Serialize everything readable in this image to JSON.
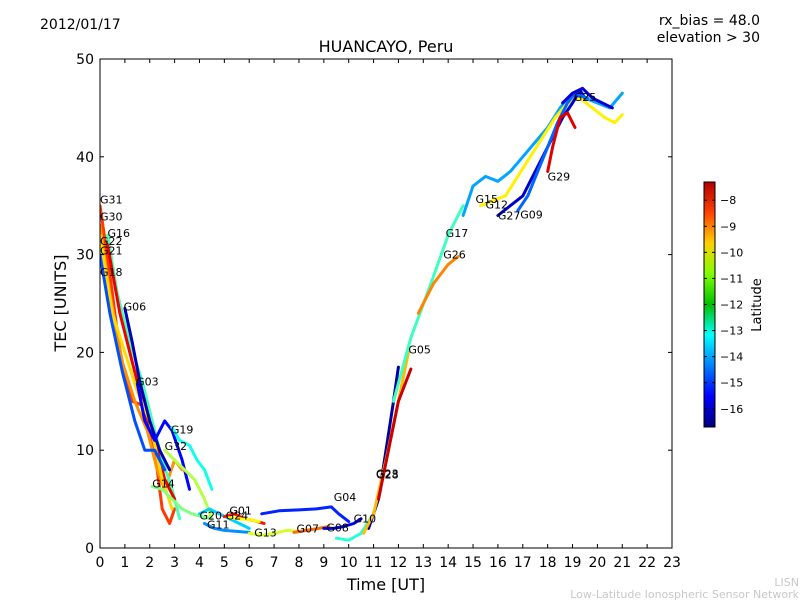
{
  "chart_data": {
    "type": "line",
    "date": "2012/01/17",
    "title": "HUANCAYO, Peru",
    "params": [
      "rx_bias = 48.0",
      "elevation > 30"
    ],
    "xlabel": "Time [UT]",
    "ylabel": "TEC [UNITS]",
    "xlim": [
      0,
      23
    ],
    "ylim": [
      0,
      50
    ],
    "xticks": [
      "0",
      "1",
      "2",
      "3",
      "4",
      "5",
      "6",
      "7",
      "8",
      "9",
      "10",
      "11",
      "12",
      "13",
      "14",
      "15",
      "16",
      "17",
      "18",
      "19",
      "20",
      "21",
      "22",
      "23"
    ],
    "yticks": [
      "0",
      "10",
      "20",
      "30",
      "40",
      "50"
    ],
    "colorbar": {
      "label": "Latitude",
      "range": [
        -16.7,
        -7.3
      ],
      "ticks": [
        "−8",
        "−9",
        "−10",
        "−11",
        "−12",
        "−13",
        "−14",
        "−15",
        "−16"
      ],
      "tick_values": [
        -8,
        -9,
        -10,
        -11,
        -12,
        -13,
        -14,
        -15,
        -16
      ]
    },
    "series": [
      {
        "name": "G31",
        "lat": -9.0,
        "points": [
          [
            0,
            35
          ],
          [
            0.4,
            28
          ],
          [
            0.8,
            20
          ],
          [
            1.3,
            15
          ],
          [
            1.8,
            14.5
          ],
          [
            2.2,
            10
          ],
          [
            2.5,
            4
          ],
          [
            2.8,
            2.5
          ],
          [
            3.0,
            4
          ]
        ]
      },
      {
        "name": "G30",
        "lat": -9.8,
        "points": [
          [
            0,
            33
          ],
          [
            0.4,
            26
          ],
          [
            0.9,
            19
          ],
          [
            1.4,
            15
          ],
          [
            1.9,
            12
          ],
          [
            2.3,
            8
          ],
          [
            2.6,
            6
          ],
          [
            3.0,
            9
          ],
          [
            3.3,
            8
          ]
        ]
      },
      {
        "name": "G16",
        "lat": -12.5,
        "points": [
          [
            0.3,
            32
          ],
          [
            0.7,
            26
          ],
          [
            1.2,
            21
          ],
          [
            1.7,
            17
          ],
          [
            2.1,
            13
          ],
          [
            2.5,
            9
          ],
          [
            2.9,
            6
          ],
          [
            3.2,
            3
          ]
        ]
      },
      {
        "name": "G22",
        "lat": -8.3,
        "points": [
          [
            0.3,
            31
          ],
          [
            0.8,
            24
          ],
          [
            1.3,
            19
          ],
          [
            1.8,
            14
          ],
          [
            2.2,
            11
          ],
          [
            2.6,
            7
          ],
          [
            3.0,
            5
          ]
        ]
      },
      {
        "name": "G21",
        "lat": -10.5,
        "points": [
          [
            0,
            32
          ],
          [
            0.5,
            24
          ],
          [
            1.0,
            20
          ],
          [
            1.5,
            16
          ],
          [
            2.0,
            13
          ],
          [
            2.5,
            7
          ],
          [
            2.9,
            4
          ]
        ]
      },
      {
        "name": "G18",
        "lat": -14.8,
        "points": [
          [
            0,
            30
          ],
          [
            0.4,
            24
          ],
          [
            0.9,
            18
          ],
          [
            1.4,
            13
          ],
          [
            1.8,
            10
          ],
          [
            2.2,
            10
          ],
          [
            2.6,
            8
          ]
        ]
      },
      {
        "name": "G06",
        "lat": -16.2,
        "points": [
          [
            1.0,
            24.5
          ],
          [
            1.3,
            21
          ],
          [
            1.6,
            17
          ],
          [
            2.0,
            13
          ],
          [
            2.4,
            10
          ],
          [
            2.8,
            8
          ]
        ]
      },
      {
        "name": "G03",
        "lat": -15.5,
        "points": [
          [
            1.5,
            16.8
          ],
          [
            1.8,
            13
          ],
          [
            2.2,
            11
          ],
          [
            2.6,
            13
          ],
          [
            2.9,
            12
          ],
          [
            3.3,
            9
          ],
          [
            3.6,
            6
          ]
        ]
      },
      {
        "name": "G19",
        "lat": -13.0,
        "points": [
          [
            2.9,
            12.3
          ],
          [
            3.2,
            11
          ],
          [
            3.6,
            10.5
          ],
          [
            3.9,
            9
          ],
          [
            4.2,
            8
          ],
          [
            4.5,
            6
          ]
        ]
      },
      {
        "name": "G32",
        "lat": -11.5,
        "points": [
          [
            2.6,
            10
          ],
          [
            3.0,
            9
          ],
          [
            3.4,
            8
          ],
          [
            3.8,
            7
          ],
          [
            4.2,
            5
          ],
          [
            4.5,
            3
          ]
        ]
      },
      {
        "name": "G14",
        "lat": -12.0,
        "points": [
          [
            2.1,
            6.3
          ],
          [
            2.5,
            6
          ],
          [
            2.9,
            5
          ],
          [
            3.3,
            4
          ],
          [
            3.7,
            3.5
          ],
          [
            4.1,
            3.2
          ],
          [
            4.5,
            3
          ]
        ]
      },
      {
        "name": "G20",
        "lat": -13.6,
        "points": [
          [
            4.0,
            3.5
          ],
          [
            4.4,
            4
          ],
          [
            4.8,
            3.5
          ],
          [
            5.2,
            3
          ],
          [
            5.6,
            2.5
          ],
          [
            6.0,
            2
          ]
        ]
      },
      {
        "name": "G11",
        "lat": -14.2,
        "points": [
          [
            4.2,
            2.5
          ],
          [
            4.6,
            2
          ],
          [
            5.0,
            1.8
          ],
          [
            5.5,
            1.7
          ],
          [
            6.0,
            1.6
          ]
        ]
      },
      {
        "name": "G01",
        "lat": -8.7,
        "points": [
          [
            5.0,
            3.2
          ],
          [
            5.4,
            3.5
          ],
          [
            5.8,
            3
          ],
          [
            6.2,
            2.8
          ],
          [
            6.6,
            2.5
          ]
        ]
      },
      {
        "name": "G24",
        "lat": -10.8,
        "points": [
          [
            5.2,
            3.1
          ],
          [
            5.6,
            3
          ],
          [
            6.0,
            2.9
          ],
          [
            6.4,
            2.7
          ]
        ]
      },
      {
        "name": "G13",
        "lat": -11.2,
        "points": [
          [
            6.0,
            1.5
          ],
          [
            6.5,
            1.3
          ],
          [
            7.0,
            1.5
          ],
          [
            7.5,
            1.8
          ],
          [
            8.0,
            1.7
          ]
        ]
      },
      {
        "name": "G07",
        "lat": -9.5,
        "points": [
          [
            7.8,
            1.6
          ],
          [
            8.3,
            1.8
          ],
          [
            8.8,
            2
          ],
          [
            9.2,
            2.2
          ]
        ]
      },
      {
        "name": "G08",
        "lat": -15.8,
        "points": [
          [
            9.0,
            2
          ],
          [
            9.4,
            2
          ],
          [
            9.8,
            2.2
          ],
          [
            10.2,
            2.5
          ],
          [
            10.5,
            3
          ]
        ]
      },
      {
        "name": "G04",
        "lat": -15.2,
        "points": [
          [
            6.5,
            3.5
          ],
          [
            7.2,
            3.8
          ],
          [
            8.0,
            3.9
          ],
          [
            8.7,
            4
          ],
          [
            9.3,
            4.2
          ],
          [
            9.6,
            3.5
          ],
          [
            10.0,
            2.7
          ]
        ]
      },
      {
        "name": "G10",
        "lat": -12.8,
        "points": [
          [
            9.5,
            1
          ],
          [
            10.0,
            0.8
          ],
          [
            10.5,
            1.5
          ],
          [
            11.0,
            3.5
          ],
          [
            11.3,
            6
          ]
        ]
      },
      {
        "name": "G28",
        "lat": -16.4,
        "points": [
          [
            10.8,
            2
          ],
          [
            11.2,
            5
          ],
          [
            11.5,
            10
          ],
          [
            11.8,
            15
          ],
          [
            12.0,
            18.5
          ]
        ]
      },
      {
        "name": "G05",
        "lat": -10.2,
        "points": [
          [
            10.6,
            1.5
          ],
          [
            11.0,
            3.5
          ],
          [
            11.5,
            9
          ],
          [
            12.0,
            15
          ],
          [
            12.4,
            20
          ]
        ]
      },
      {
        "name": "G23",
        "lat": -8.0,
        "points": [
          [
            11.2,
            5
          ],
          [
            11.6,
            10
          ],
          [
            12.0,
            15
          ],
          [
            12.5,
            18.3
          ]
        ]
      },
      {
        "name": "G17",
        "lat": -12.6,
        "points": [
          [
            11.8,
            15
          ],
          [
            12.5,
            21.5
          ],
          [
            13.3,
            27
          ],
          [
            14.0,
            32
          ],
          [
            14.6,
            35
          ]
        ]
      },
      {
        "name": "G26",
        "lat": -9.7,
        "points": [
          [
            12.8,
            24
          ],
          [
            13.4,
            27
          ],
          [
            14.0,
            29
          ],
          [
            14.4,
            29.8
          ]
        ]
      },
      {
        "name": "G15",
        "lat": -14.0,
        "points": [
          [
            14.6,
            34
          ],
          [
            15.0,
            37
          ],
          [
            15.5,
            38
          ],
          [
            16.0,
            37.5
          ],
          [
            16.5,
            38.5
          ],
          [
            17.0,
            40
          ],
          [
            17.5,
            41.5
          ],
          [
            18.0,
            43
          ],
          [
            18.5,
            45
          ],
          [
            19.0,
            46.5
          ],
          [
            19.5,
            46
          ],
          [
            20.0,
            45.5
          ],
          [
            20.5,
            45
          ],
          [
            21.0,
            46.5
          ]
        ]
      },
      {
        "name": "G12",
        "lat": -10.7,
        "points": [
          [
            15.3,
            35
          ],
          [
            15.8,
            35.5
          ],
          [
            16.3,
            36
          ],
          [
            16.8,
            38
          ],
          [
            17.3,
            40
          ],
          [
            17.8,
            42
          ],
          [
            18.3,
            44
          ],
          [
            18.8,
            45.5
          ],
          [
            19.3,
            46
          ],
          [
            19.8,
            45
          ],
          [
            20.3,
            44
          ],
          [
            20.7,
            43.5
          ],
          [
            21.0,
            44.3
          ]
        ]
      },
      {
        "name": "G27",
        "lat": -16.0,
        "points": [
          [
            16.0,
            34
          ],
          [
            16.5,
            35
          ],
          [
            17.0,
            36
          ],
          [
            17.4,
            38
          ],
          [
            17.8,
            40
          ],
          [
            18.2,
            42
          ],
          [
            18.6,
            44
          ],
          [
            19.0,
            45.5
          ],
          [
            19.3,
            46.8
          ],
          [
            19.5,
            46
          ]
        ]
      },
      {
        "name": "G09",
        "lat": -14.6,
        "points": [
          [
            16.8,
            34.5
          ],
          [
            17.2,
            36
          ],
          [
            17.6,
            38.5
          ],
          [
            18.0,
            41
          ],
          [
            18.4,
            43.5
          ],
          [
            18.8,
            45.5
          ],
          [
            19.1,
            46.5
          ],
          [
            19.6,
            46
          ]
        ]
      },
      {
        "name": "G29",
        "lat": -8.2,
        "points": [
          [
            18.0,
            38.5
          ],
          [
            18.2,
            41
          ],
          [
            18.5,
            44
          ],
          [
            18.8,
            44.5
          ],
          [
            19.1,
            43
          ]
        ]
      },
      {
        "name": "G25",
        "lat": -15.9,
        "points": [
          [
            18.6,
            45.5
          ],
          [
            19.0,
            46.5
          ],
          [
            19.4,
            47
          ],
          [
            19.8,
            46
          ],
          [
            20.2,
            45.5
          ],
          [
            20.6,
            45
          ]
        ]
      }
    ],
    "annotations": [
      {
        "text": "G31",
        "x": 0.0,
        "y": 35.2
      },
      {
        "text": "G30",
        "x": 0.0,
        "y": 33.5
      },
      {
        "text": "G16",
        "x": 0.3,
        "y": 31.8
      },
      {
        "text": "G22",
        "x": 0.0,
        "y": 31.0
      },
      {
        "text": "G21",
        "x": 0.0,
        "y": 30.0
      },
      {
        "text": "G18",
        "x": 0.0,
        "y": 27.8
      },
      {
        "text": "G06",
        "x": 0.95,
        "y": 24.3
      },
      {
        "text": "G03",
        "x": 1.45,
        "y": 16.6
      },
      {
        "text": "G19",
        "x": 2.85,
        "y": 11.7
      },
      {
        "text": "G32",
        "x": 2.6,
        "y": 10.0
      },
      {
        "text": "G14",
        "x": 2.1,
        "y": 6.2
      },
      {
        "text": "G20",
        "x": 4.0,
        "y": 2.9
      },
      {
        "text": "G11",
        "x": 4.3,
        "y": 2.0
      },
      {
        "text": "G01",
        "x": 5.2,
        "y": 3.4
      },
      {
        "text": "G24",
        "x": 5.05,
        "y": 2.9
      },
      {
        "text": "G13",
        "x": 6.2,
        "y": 1.2
      },
      {
        "text": "G07",
        "x": 7.9,
        "y": 1.6
      },
      {
        "text": "G08",
        "x": 9.1,
        "y": 1.7
      },
      {
        "text": "G10",
        "x": 10.2,
        "y": 2.6
      },
      {
        "text": "G04",
        "x": 9.4,
        "y": 4.8
      },
      {
        "text": "G28",
        "x": 11.1,
        "y": 7.1
      },
      {
        "text": "G23",
        "x": 11.1,
        "y": 7.2
      },
      {
        "text": "G05",
        "x": 12.4,
        "y": 19.9
      },
      {
        "text": "G17",
        "x": 13.9,
        "y": 31.8
      },
      {
        "text": "G26",
        "x": 13.8,
        "y": 29.6
      },
      {
        "text": "G15",
        "x": 15.1,
        "y": 35.3
      },
      {
        "text": "G12",
        "x": 15.5,
        "y": 34.7
      },
      {
        "text": "G27",
        "x": 16.0,
        "y": 33.6
      },
      {
        "text": "G09",
        "x": 16.9,
        "y": 33.7
      },
      {
        "text": "G29",
        "x": 18.0,
        "y": 37.6
      },
      {
        "text": "G25",
        "x": 19.05,
        "y": 45.7
      }
    ]
  },
  "footer": {
    "acronym": "LISN",
    "network": "Low-Latitude Ionospheric Sensor Network"
  }
}
